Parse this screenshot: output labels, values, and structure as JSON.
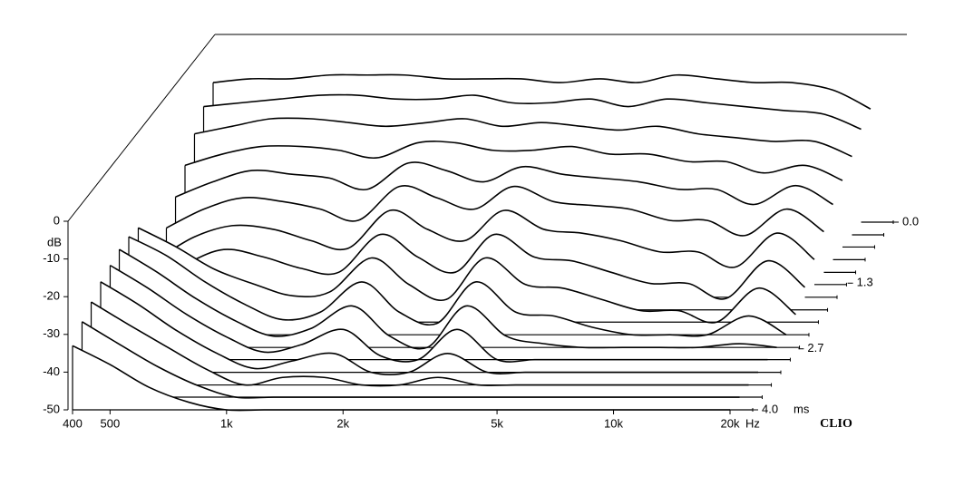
{
  "chart_data": {
    "type": "waterfall",
    "x": [
      400,
      500,
      630,
      800,
      1000,
      1250,
      1600,
      2000,
      2500,
      3150,
      4000,
      5000,
      6300,
      8000,
      10000,
      12500,
      16000,
      20000
    ],
    "xlim": [
      400,
      20000
    ],
    "xticks": [
      400,
      500,
      {
        "value": 1000,
        "label": "1k"
      },
      {
        "value": 2000,
        "label": "2k"
      },
      {
        "value": 5000,
        "label": "5k"
      },
      {
        "value": 10000,
        "label": "10k"
      },
      {
        "value": 20000,
        "label": "20k"
      }
    ],
    "xlabel": "Hz",
    "log_x": true,
    "ylim": [
      -50,
      0
    ],
    "yticks": [
      0,
      -10,
      -20,
      -30,
      -40,
      -50
    ],
    "ylabel": "dB",
    "zlim": [
      0,
      4
    ],
    "zticks": [
      {
        "value": 0,
        "label": "0.0"
      },
      1.3,
      2.7,
      {
        "value": 4,
        "label": "4.0"
      }
    ],
    "zlabel": "ms",
    "brand": "CLIO",
    "line_color": "#000000",
    "slices": [
      {
        "time": 0,
        "values": [
          -13,
          -12,
          -12,
          -11,
          -11,
          -11,
          -12,
          -12,
          -12,
          -13,
          -12,
          -13,
          -11,
          -12,
          -13,
          -13,
          -15,
          -20
        ]
      },
      {
        "time": 0.27,
        "values": [
          -16,
          -15,
          -14,
          -13,
          -13,
          -14,
          -14,
          -13,
          -15,
          -15,
          -14,
          -16,
          -14,
          -15,
          -16,
          -17,
          -18,
          -22
        ]
      },
      {
        "time": 0.53,
        "values": [
          -20,
          -18,
          -16,
          -16,
          -17,
          -18,
          -17,
          -16,
          -18,
          -17,
          -18,
          -19,
          -18,
          -20,
          -21,
          -22,
          -22,
          -26
        ]
      },
      {
        "time": 0.8,
        "values": [
          -25,
          -22,
          -20,
          -20,
          -21,
          -23,
          -19,
          -19,
          -21,
          -21,
          -20,
          -22,
          -22,
          -24,
          -24,
          -27,
          -25,
          -29
        ]
      },
      {
        "time": 1.07,
        "values": [
          -30,
          -26,
          -23,
          -24,
          -25,
          -28,
          -21,
          -23,
          -26,
          -22,
          -24,
          -25,
          -26,
          -28,
          -28,
          -32,
          -27,
          -32
        ]
      },
      {
        "time": 1.33,
        "values": [
          -35,
          -30,
          -27,
          -28,
          -30,
          -33,
          -24,
          -27,
          -30,
          -24,
          -28,
          -29,
          -30,
          -33,
          -33,
          -37,
          -30,
          -36
        ]
      },
      {
        "time": 1.6,
        "values": [
          -40,
          -34,
          -31,
          -32,
          -35,
          -37,
          -27,
          -32,
          -35,
          -27,
          -32,
          -33,
          -35,
          -38,
          -38,
          -42,
          -33,
          -40
        ]
      },
      {
        "time": 1.87,
        "values": [
          -44,
          -38,
          -34,
          -36,
          -39,
          -40,
          -30,
          -36,
          -40,
          -30,
          -36,
          -37,
          -40,
          -43,
          -43,
          -47,
          -37,
          -44
        ]
      },
      {
        "time": 2.13,
        "values": [
          -25,
          -30,
          -36,
          -40,
          -43,
          -42,
          -33,
          -40,
          -44,
          -33,
          -40,
          -41,
          -44,
          -47,
          -47,
          -50,
          -41,
          -48
        ]
      },
      {
        "time": 2.4,
        "values": [
          -24,
          -29,
          -36,
          -42,
          -46,
          -44,
          -36,
          -44,
          -47,
          -36,
          -44,
          -45,
          -48,
          -50,
          -50,
          -50,
          -45,
          -50
        ]
      },
      {
        "time": 2.67,
        "values": [
          -24,
          -30,
          -37,
          -43,
          -47,
          -45,
          -39,
          -47,
          -50,
          -39,
          -47,
          -49,
          -50,
          -50,
          -50,
          -50,
          -49,
          -50
        ]
      },
      {
        "time": 2.93,
        "values": [
          -25,
          -31,
          -38,
          -44,
          -48,
          -46,
          -42,
          -49,
          -50,
          -42,
          -50,
          -50,
          -50,
          -50,
          -50,
          -50,
          -50,
          -50
        ]
      },
      {
        "time": 3.2,
        "values": [
          -26,
          -32,
          -39,
          -45,
          -49,
          -47,
          -45,
          -50,
          -50,
          -45,
          -50,
          -50,
          -50,
          -50,
          -50,
          -50,
          -50,
          -50
        ]
      },
      {
        "time": 3.47,
        "values": [
          -28,
          -34,
          -40,
          -46,
          -50,
          -48,
          -48,
          -50,
          -50,
          -48,
          -50,
          -50,
          -50,
          -50,
          -50,
          -50,
          -50,
          -50
        ]
      },
      {
        "time": 3.73,
        "values": [
          -30,
          -36,
          -42,
          -47,
          -50,
          -50,
          -50,
          -50,
          -50,
          -50,
          -50,
          -50,
          -50,
          -50,
          -50,
          -50,
          -50,
          -50
        ]
      },
      {
        "time": 4.0,
        "values": [
          -33,
          -38,
          -44,
          -48,
          -50,
          -50,
          -50,
          -50,
          -50,
          -50,
          -50,
          -50,
          -50,
          -50,
          -50,
          -50,
          -50,
          -50
        ]
      }
    ]
  }
}
